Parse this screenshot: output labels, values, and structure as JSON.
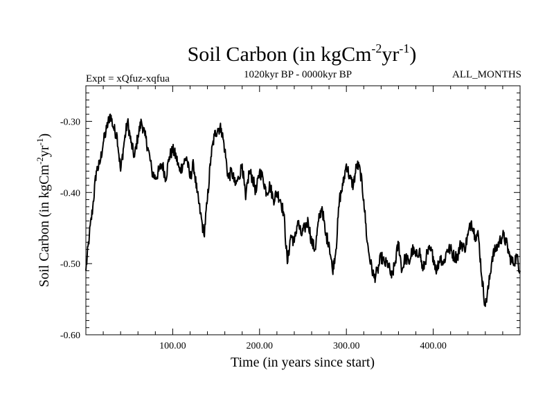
{
  "chart_data": {
    "type": "line",
    "title": "Soil Carbon (in kgCm",
    "title_sup1": "-2",
    "title_mid": "yr",
    "title_sup2": "-1",
    "title_end": ")",
    "subtitle_left": "Expt = xQfuz-xqfua",
    "subtitle_center": "1020kyr BP - 0000kyr BP",
    "subtitle_right": "ALL_MONTHS",
    "xlabel": "Time (in years since start)",
    "ylabel": "Soil Carbon (in kgCm",
    "ylabel_sup1": "-2",
    "ylabel_mid": "yr",
    "ylabel_sup2": "-1",
    "ylabel_end": ")",
    "xlim": [
      0,
      500
    ],
    "ylim": [
      -0.6,
      -0.25
    ],
    "x_ticks": [
      100,
      200,
      300,
      400
    ],
    "x_tick_labels": [
      "100.00",
      "200.00",
      "300.00",
      "400.00"
    ],
    "y_ticks": [
      -0.6,
      -0.5,
      -0.4,
      -0.3
    ],
    "y_tick_labels": [
      "-0.60",
      "-0.50",
      "-0.40",
      "-0.30"
    ],
    "grid": false,
    "series": [
      {
        "name": "Soil Carbon",
        "color": "#000000",
        "x": [
          0,
          4,
          8,
          12,
          16,
          20,
          24,
          28,
          32,
          36,
          40,
          44,
          48,
          52,
          56,
          60,
          64,
          68,
          72,
          76,
          80,
          84,
          88,
          92,
          96,
          100,
          104,
          108,
          112,
          116,
          120,
          124,
          128,
          132,
          136,
          140,
          144,
          148,
          152,
          156,
          160,
          164,
          168,
          172,
          176,
          180,
          184,
          188,
          192,
          196,
          200,
          204,
          208,
          212,
          216,
          220,
          224,
          228,
          232,
          236,
          240,
          244,
          248,
          252,
          256,
          260,
          264,
          268,
          272,
          276,
          280,
          284,
          288,
          292,
          296,
          300,
          304,
          308,
          312,
          316,
          320,
          324,
          328,
          332,
          336,
          340,
          344,
          348,
          352,
          356,
          360,
          364,
          368,
          372,
          376,
          380,
          384,
          388,
          392,
          396,
          400,
          404,
          408,
          412,
          416,
          420,
          424,
          428,
          432,
          436,
          440,
          444,
          448,
          452,
          456,
          460,
          464,
          468,
          472,
          476,
          480,
          484,
          488,
          492,
          496,
          500
        ],
        "values": [
          -0.51,
          -0.46,
          -0.42,
          -0.37,
          -0.36,
          -0.33,
          -0.31,
          -0.29,
          -0.31,
          -0.32,
          -0.37,
          -0.33,
          -0.3,
          -0.33,
          -0.35,
          -0.32,
          -0.3,
          -0.32,
          -0.34,
          -0.37,
          -0.38,
          -0.37,
          -0.36,
          -0.38,
          -0.35,
          -0.34,
          -0.35,
          -0.37,
          -0.36,
          -0.35,
          -0.38,
          -0.36,
          -0.4,
          -0.43,
          -0.46,
          -0.41,
          -0.35,
          -0.32,
          -0.31,
          -0.31,
          -0.34,
          -0.38,
          -0.37,
          -0.39,
          -0.38,
          -0.36,
          -0.41,
          -0.37,
          -0.38,
          -0.4,
          -0.37,
          -0.38,
          -0.4,
          -0.39,
          -0.41,
          -0.4,
          -0.41,
          -0.43,
          -0.5,
          -0.46,
          -0.47,
          -0.44,
          -0.46,
          -0.45,
          -0.44,
          -0.47,
          -0.48,
          -0.44,
          -0.42,
          -0.46,
          -0.47,
          -0.51,
          -0.48,
          -0.41,
          -0.39,
          -0.36,
          -0.38,
          -0.39,
          -0.36,
          -0.37,
          -0.41,
          -0.47,
          -0.5,
          -0.52,
          -0.51,
          -0.49,
          -0.5,
          -0.5,
          -0.52,
          -0.5,
          -0.47,
          -0.51,
          -0.49,
          -0.5,
          -0.48,
          -0.49,
          -0.48,
          -0.51,
          -0.49,
          -0.48,
          -0.49,
          -0.51,
          -0.49,
          -0.5,
          -0.48,
          -0.48,
          -0.49,
          -0.49,
          -0.47,
          -0.48,
          -0.46,
          -0.44,
          -0.46,
          -0.46,
          -0.52,
          -0.56,
          -0.53,
          -0.49,
          -0.48,
          -0.47,
          -0.46,
          -0.47,
          -0.49,
          -0.5,
          -0.49,
          -0.51
        ]
      }
    ]
  }
}
